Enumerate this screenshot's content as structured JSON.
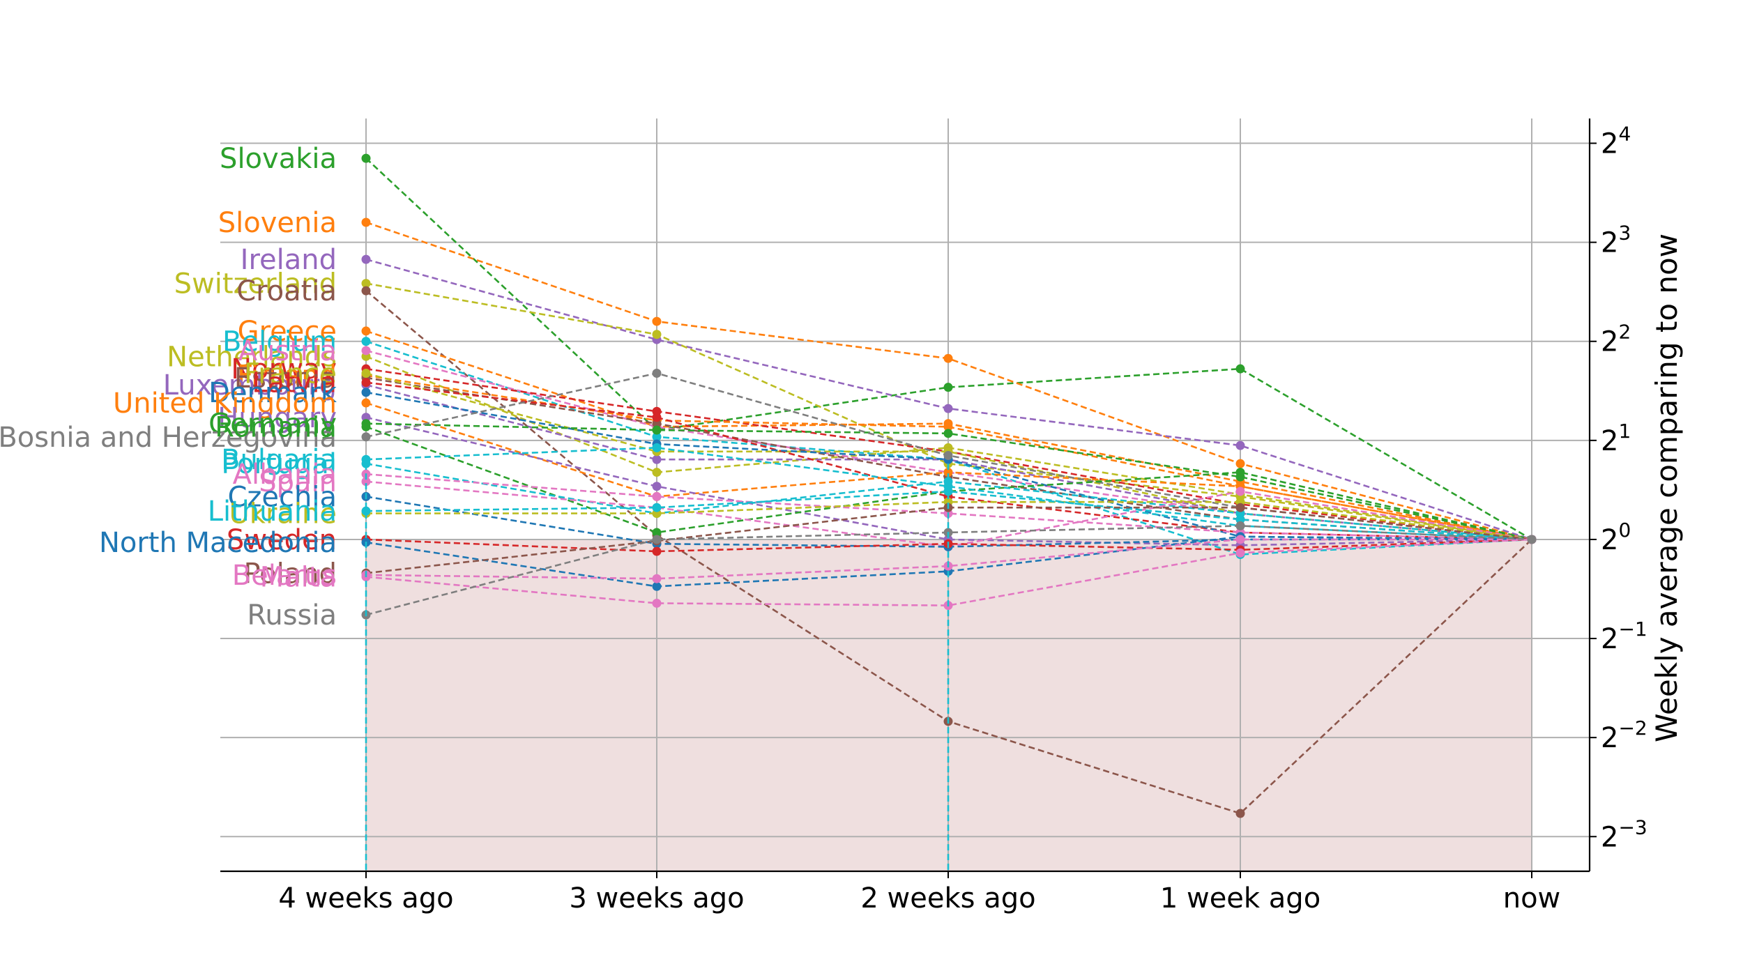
{
  "chart_data": {
    "type": "line",
    "title": "",
    "xlabel": "",
    "ylabel": "Weekly average comparing to now",
    "y_scale": "log2",
    "ylim_exp": [
      -3.35,
      4.25
    ],
    "grid": true,
    "shaded_region": {
      "from": "2^-3.35",
      "to": "2^0",
      "color": "#efdfdf"
    },
    "categories": [
      "4 weeks ago",
      "3 weeks ago",
      "2 weeks ago",
      "1 week ago",
      "now"
    ],
    "y_ticks": [
      {
        "base": "2",
        "exp": "4",
        "value": 16
      },
      {
        "base": "2",
        "exp": "3",
        "value": 8
      },
      {
        "base": "2",
        "exp": "2",
        "value": 4
      },
      {
        "base": "2",
        "exp": "1",
        "value": 2
      },
      {
        "base": "2",
        "exp": "0",
        "value": 1
      },
      {
        "base": "2",
        "exp": "−1",
        "value": 0.5
      },
      {
        "base": "2",
        "exp": "−2",
        "value": 0.25
      },
      {
        "base": "2",
        "exp": "−3",
        "value": 0.125
      }
    ],
    "series": [
      {
        "name": "Slovakia",
        "color": "#2ca02c",
        "values": [
          14.4,
          2.15,
          2.9,
          3.3,
          1
        ]
      },
      {
        "name": "Slovenia",
        "color": "#ff7f0e",
        "values": [
          9.2,
          4.6,
          3.55,
          1.7,
          1
        ]
      },
      {
        "name": "Ireland",
        "color": "#9467bd",
        "values": [
          7.1,
          4.05,
          2.5,
          1.93,
          1
        ]
      },
      {
        "name": "Switzerland",
        "color": "#bcbd22",
        "values": [
          6.0,
          4.2,
          1.7,
          1.35,
          1
        ]
      },
      {
        "name": "Croatia",
        "color": "#8c564b",
        "values": [
          5.7,
          1.03,
          0.28,
          0.147,
          1
        ]
      },
      {
        "name": "Greece",
        "color": "#ff7f0e",
        "values": [
          4.3,
          2.2,
          2.25,
          1.5,
          1
        ]
      },
      {
        "name": "Belgium",
        "color": "#17becf",
        "values": [
          4.0,
          2.05,
          1.75,
          0.9,
          1
        ]
      },
      {
        "name": "Netherlands",
        "color": "#bcbd22",
        "values": [
          3.6,
          1.6,
          1.9,
          1.37,
          1
        ]
      },
      {
        "name": "Austria",
        "color": "#e377c2",
        "values": [
          3.75,
          2.2,
          1.6,
          1.2,
          1
        ]
      },
      {
        "name": "Norway",
        "color": "#d62728",
        "values": [
          3.3,
          2.45,
          1.85,
          1.28,
          1
        ]
      },
      {
        "name": "Finland",
        "color": "#ff7f0e",
        "values": [
          3.15,
          2.3,
          2.2,
          1.45,
          1
        ]
      },
      {
        "name": "Luxembourg",
        "color": "#9467bd",
        "values": [
          2.95,
          1.75,
          1.75,
          1.2,
          1
        ]
      },
      {
        "name": "Estonia",
        "color": "#8c564b",
        "values": [
          3.1,
          2.25,
          1.55,
          1.15,
          1
        ]
      },
      {
        "name": "France",
        "color": "#bcbd22",
        "values": [
          3.2,
          1.85,
          1.85,
          1.2,
          1
        ]
      },
      {
        "name": "Latvia",
        "color": "#d62728",
        "values": [
          3.0,
          2.35,
          1.35,
          1.05,
          1
        ]
      },
      {
        "name": "Denmark",
        "color": "#1f77b4",
        "values": [
          2.8,
          1.95,
          1.75,
          1.02,
          1
        ]
      },
      {
        "name": "United Kingdom",
        "color": "#ff7f0e",
        "values": [
          2.6,
          1.35,
          1.6,
          1.45,
          1
        ]
      },
      {
        "name": "Hungary",
        "color": "#9467bd",
        "values": [
          2.35,
          1.45,
          1.0,
          0.96,
          1
        ]
      },
      {
        "name": "Germany",
        "color": "#2ca02c",
        "values": [
          2.25,
          2.15,
          2.1,
          1.55,
          1
        ]
      },
      {
        "name": "Bosnia and Herzegovina",
        "color": "#7f7f7f",
        "values": [
          2.05,
          3.2,
          1.8,
          1.25,
          1
        ]
      },
      {
        "name": "Romania",
        "color": "#2ca02c",
        "values": [
          2.2,
          1.05,
          1.4,
          1.6,
          1
        ]
      },
      {
        "name": "Bulgaria",
        "color": "#17becf",
        "values": [
          1.75,
          1.9,
          1.45,
          1.1,
          1
        ]
      },
      {
        "name": "Portugal",
        "color": "#17becf",
        "values": [
          1.7,
          1.2,
          1.5,
          1.2,
          1
        ]
      },
      {
        "name": "Spain",
        "color": "#e377c2",
        "values": [
          1.5,
          1.25,
          0.95,
          1.4,
          1
        ]
      },
      {
        "name": "Albania",
        "color": "#e377c2",
        "values": [
          1.58,
          1.35,
          1.2,
          1.05,
          1
        ]
      },
      {
        "name": "Czechia",
        "color": "#1f77b4",
        "values": [
          1.35,
          0.97,
          0.95,
          1.0,
          1
        ]
      },
      {
        "name": "Ukraine",
        "color": "#bcbd22",
        "values": [
          1.2,
          1.2,
          1.3,
          1.3,
          1
        ]
      },
      {
        "name": "Lithuania",
        "color": "#17becf",
        "values": [
          1.22,
          1.25,
          1.4,
          1.15,
          1
        ]
      },
      {
        "name": "Sweden",
        "color": "#d62728",
        "values": [
          1.0,
          0.92,
          0.97,
          0.93,
          1
        ]
      },
      {
        "name": "North Macedonia",
        "color": "#1f77b4",
        "values": [
          0.98,
          0.72,
          0.8,
          1.02,
          1
        ]
      },
      {
        "name": "Poland",
        "color": "#8c564b",
        "values": [
          0.79,
          0.99,
          1.25,
          1.25,
          1
        ]
      },
      {
        "name": "Belarus",
        "color": "#e377c2",
        "values": [
          0.78,
          0.76,
          0.83,
          1.0,
          1
        ]
      },
      {
        "name": "Malta",
        "color": "#e377c2",
        "values": [
          0.77,
          0.64,
          0.63,
          0.91,
          1
        ]
      },
      {
        "name": "Russia",
        "color": "#7f7f7f",
        "values": [
          0.59,
          1.0,
          1.05,
          1.1,
          1
        ]
      }
    ]
  }
}
